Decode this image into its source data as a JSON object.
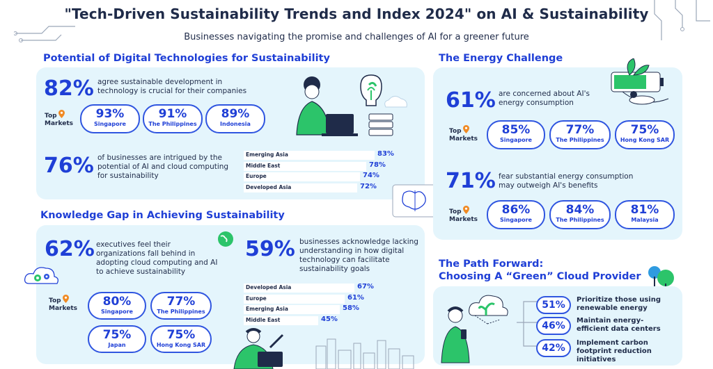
{
  "header": {
    "title": "\"Tech-Driven Sustainability Trends and Index 2024\" on AI & Sustainability",
    "subtitle": "Businesses navigating the promise and challenges of AI for a greener future"
  },
  "colors": {
    "accent": "#1f3fd6",
    "panel": "#e4f5fc",
    "pin": "#f08a24",
    "green": "#2cc46a"
  },
  "potential": {
    "title": "Potential of Digital Technologies for Sustainability",
    "stat1": {
      "value": "82%",
      "text": "agree sustainable development in technology is crucial for their companies"
    },
    "top_markets_label": "Top Markets",
    "markets": [
      {
        "pct": "93%",
        "name": "Singapore"
      },
      {
        "pct": "91%",
        "name": "The Philippines"
      },
      {
        "pct": "89%",
        "name": "Indonesia"
      }
    ],
    "stat2": {
      "value": "76%",
      "text": "of businesses are intrigued by the potential of AI and cloud computing for sustainability"
    },
    "regions": [
      {
        "label": "Emerging Asia",
        "value": "83%",
        "pct": 83
      },
      {
        "label": "Middle East",
        "value": "78%",
        "pct": 78
      },
      {
        "label": "Europe",
        "value": "74%",
        "pct": 74
      },
      {
        "label": "Developed Asia",
        "value": "72%",
        "pct": 72
      }
    ]
  },
  "knowledge": {
    "title": "Knowledge Gap in Achieving Sustainability",
    "stat1": {
      "value": "62%",
      "text": "executives feel their organizations fall behind in adopting cloud computing and AI to achieve sustainability"
    },
    "stat2": {
      "value": "59%",
      "text": "businesses acknowledge lacking understanding in how digital technology can facilitate sustainability goals"
    },
    "top_markets_label": "Top Markets",
    "markets": [
      {
        "pct": "80%",
        "name": "Singapore"
      },
      {
        "pct": "77%",
        "name": "The Philippines"
      },
      {
        "pct": "75%",
        "name": "Japan"
      },
      {
        "pct": "75%",
        "name": "Hong Kong SAR"
      }
    ],
    "regions": [
      {
        "label": "Developed Asia",
        "value": "67%",
        "pct": 67
      },
      {
        "label": "Europe",
        "value": "61%",
        "pct": 61
      },
      {
        "label": "Emerging Asia",
        "value": "58%",
        "pct": 58
      },
      {
        "label": "Middle East",
        "value": "45%",
        "pct": 45
      }
    ]
  },
  "energy": {
    "title": "The Energy Challenge",
    "stat1": {
      "value": "61%",
      "text": "are concerned about AI's energy consumption"
    },
    "markets1": [
      {
        "pct": "85%",
        "name": "Singapore"
      },
      {
        "pct": "77%",
        "name": "The Philippines"
      },
      {
        "pct": "75%",
        "name": "Hong Kong SAR"
      }
    ],
    "stat2": {
      "value": "71%",
      "text": "fear substantial energy consumption may outweigh AI's benefits"
    },
    "markets2": [
      {
        "pct": "86%",
        "name": "Singapore"
      },
      {
        "pct": "84%",
        "name": "The Philippines"
      },
      {
        "pct": "81%",
        "name": "Malaysia"
      }
    ],
    "top_markets_label": "Top Markets"
  },
  "path": {
    "title_line1": "The Path Forward:",
    "title_line2": "Choosing A “Green” Cloud Provider",
    "items": [
      {
        "pct": "51%",
        "text": "Prioritize those using renewable energy"
      },
      {
        "pct": "46%",
        "text": "Maintain energy-efficient data centers"
      },
      {
        "pct": "42%",
        "text": "Implement carbon footprint reduction initiatives"
      }
    ]
  }
}
